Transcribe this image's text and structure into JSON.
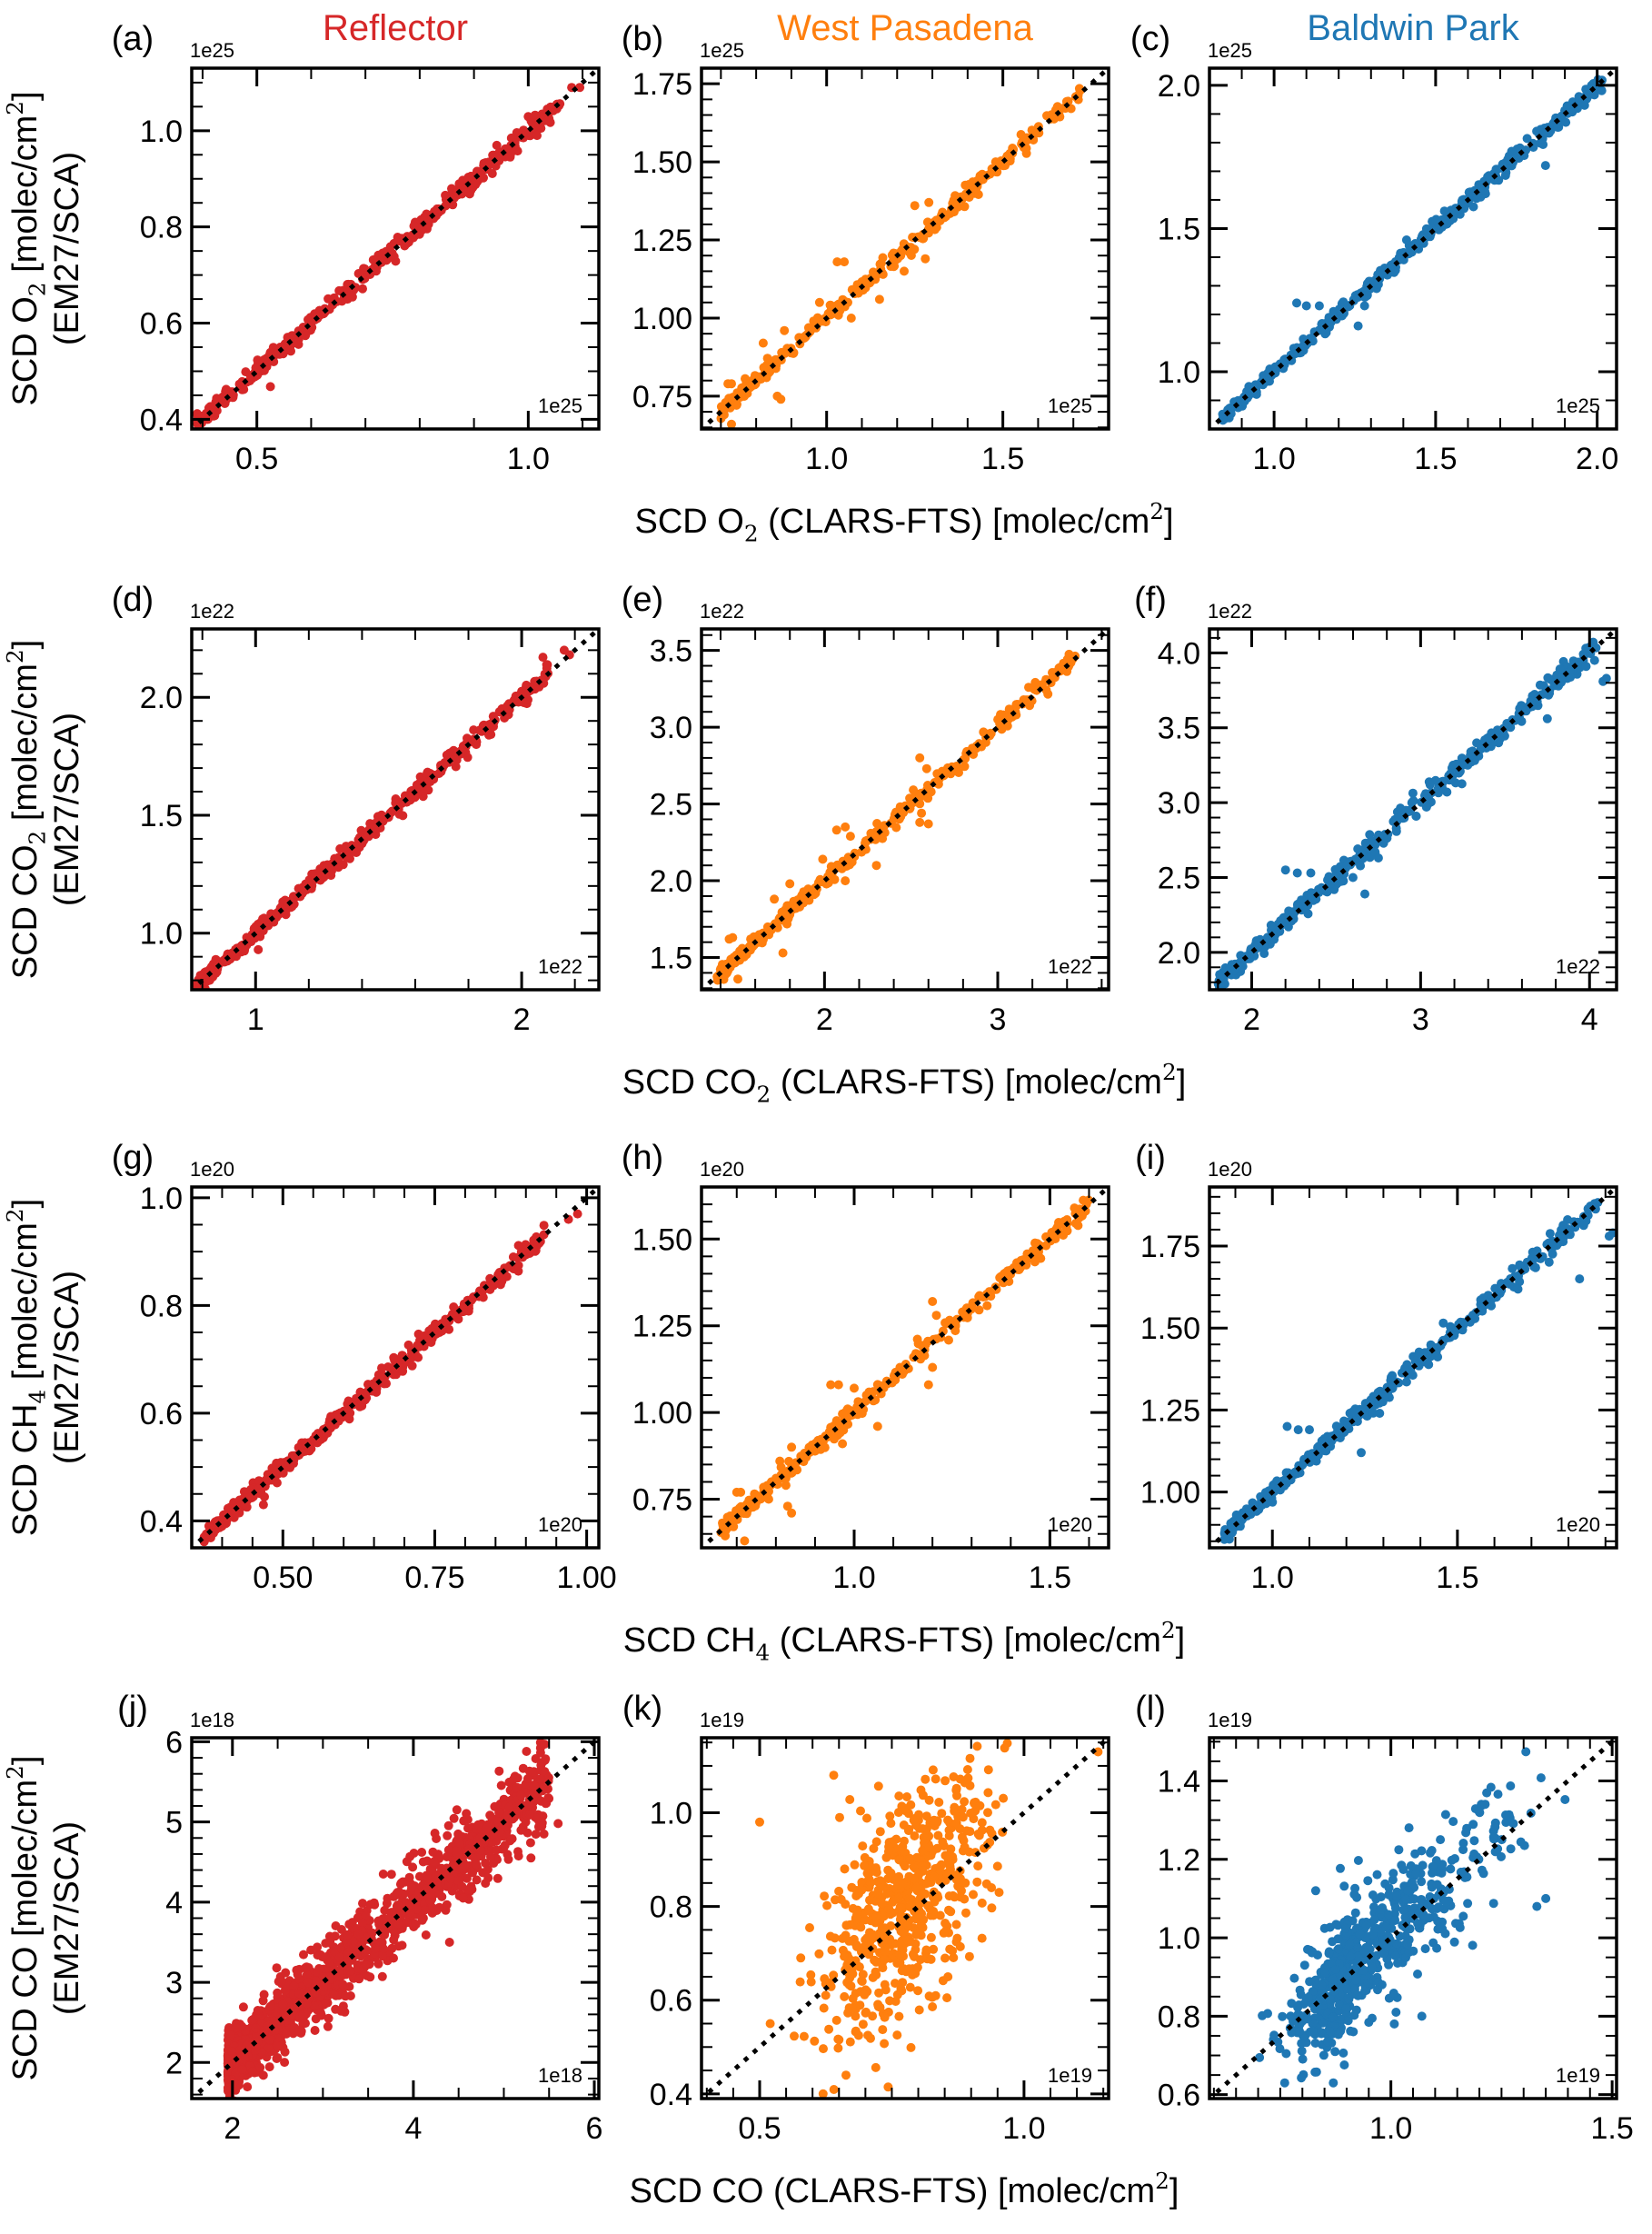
{
  "chart_data": {
    "type": "scatter",
    "title": "",
    "column_titles": [
      {
        "label": "Reflector",
        "color": "#d62728"
      },
      {
        "label": "West Pasadena",
        "color": "#ff7f0e"
      },
      {
        "label": "Baldwin Park",
        "color": "#1f77b4"
      }
    ],
    "ylabel_line2": "(EM27/SCA)",
    "row_xlabels": [
      {
        "prefix": "SCD O",
        "sub": "2",
        "suffix": " (CLARS-FTS) [molec/cm",
        "sup": "2",
        "end": "]"
      },
      {
        "prefix": "SCD CO",
        "sub": "2",
        "suffix": " (CLARS-FTS) [molec/cm",
        "sup": "2",
        "end": "]"
      },
      {
        "prefix": "SCD CH",
        "sub": "4",
        "suffix": " (CLARS-FTS) [molec/cm",
        "sup": "2",
        "end": "]"
      },
      {
        "prefix": "SCD CO",
        "sub": "",
        "suffix": " (CLARS-FTS) [molec/cm",
        "sup": "2",
        "end": "]"
      }
    ],
    "row_ylabels": [
      {
        "prefix": "SCD O",
        "sub": "2",
        "suffix": " [molec/cm",
        "sup": "2",
        "end": "]"
      },
      {
        "prefix": "SCD CO",
        "sub": "2",
        "suffix": " [molec/cm",
        "sup": "2",
        "end": "]"
      },
      {
        "prefix": "SCD CH",
        "sub": "4",
        "suffix": " [molec/cm",
        "sup": "2",
        "end": "]"
      },
      {
        "prefix": "SCD CO",
        "sub": "",
        "suffix": " [molec/cm",
        "sup": "2",
        "end": "]"
      }
    ],
    "reference_line": {
      "type": "1:1",
      "style": "dotted",
      "color": "#000000"
    },
    "panels": [
      {
        "id": "a",
        "label": "(a)",
        "site": "Reflector",
        "gas": "O2",
        "scale": "1e25",
        "xlim": [
          0.38,
          1.13
        ],
        "ylim": [
          0.38,
          1.13
        ],
        "xticks": [
          0.5,
          1.0
        ],
        "xticklabels": [
          "0.5",
          "1.0"
        ],
        "xminor": 0.1,
        "yticks": [
          0.4,
          0.6,
          0.8,
          1.0
        ],
        "yticklabels": [
          "0.4",
          "0.6",
          "0.8",
          "1.0"
        ],
        "yminor": 0.05,
        "spread": 0.008,
        "n": 420,
        "x_range": [
          0.39,
          1.06
        ],
        "outliers": [
          [
            0.525,
            0.468
          ],
          [
            1.035,
            1.045
          ],
          [
            1.08,
            1.09
          ],
          [
            1.095,
            1.09
          ]
        ]
      },
      {
        "id": "b",
        "label": "(b)",
        "site": "West Pasadena",
        "gas": "O2",
        "scale": "1e25",
        "xlim": [
          0.645,
          1.8
        ],
        "ylim": [
          0.645,
          1.8
        ],
        "xticks": [
          1.0,
          1.5
        ],
        "xticklabels": [
          "1.0",
          "1.5"
        ],
        "xminor": 0.1,
        "yticks": [
          0.75,
          1.0,
          1.25,
          1.5,
          1.75
        ],
        "yticklabels": [
          "0.75",
          "1.00",
          "1.25",
          "1.50",
          "1.75"
        ],
        "yminor": 0.05,
        "spread": 0.012,
        "n": 320,
        "x_range": [
          0.7,
          1.72
        ],
        "outliers": [
          [
            0.72,
            0.79
          ],
          [
            0.73,
            0.79
          ],
          [
            0.73,
            0.66
          ],
          [
            0.82,
            0.92
          ],
          [
            0.86,
            0.75
          ],
          [
            0.87,
            0.74
          ],
          [
            0.88,
            0.96
          ],
          [
            1.03,
            1.18
          ],
          [
            1.05,
            1.18
          ],
          [
            1.06,
            1.05
          ],
          [
            1.07,
            1.0
          ],
          [
            1.15,
            1.06
          ],
          [
            0.98,
            1.05
          ],
          [
            1.16,
            1.14
          ],
          [
            1.22,
            1.15
          ],
          [
            1.25,
            1.36
          ],
          [
            1.29,
            1.37
          ],
          [
            1.28,
            1.19
          ],
          [
            1.21,
            1.2
          ]
        ]
      },
      {
        "id": "c",
        "label": "(c)",
        "site": "Baldwin Park",
        "gas": "O2",
        "scale": "1e25",
        "xlim": [
          0.8,
          2.06
        ],
        "ylim": [
          0.8,
          2.06
        ],
        "xticks": [
          1.0,
          1.5,
          2.0
        ],
        "xticklabels": [
          "1.0",
          "1.5",
          "2.0"
        ],
        "xminor": 0.1,
        "yticks": [
          1.0,
          1.5,
          2.0
        ],
        "yticklabels": [
          "1.0",
          "1.5",
          "2.0"
        ],
        "yminor": 0.1,
        "spread": 0.012,
        "n": 420,
        "x_range": [
          0.84,
          2.02
        ],
        "outliers": [
          [
            1.07,
            1.24
          ],
          [
            1.1,
            1.23
          ],
          [
            1.14,
            1.23
          ],
          [
            1.26,
            1.16
          ],
          [
            1.28,
            1.23
          ],
          [
            1.41,
            1.46
          ],
          [
            1.84,
            1.72
          ]
        ]
      },
      {
        "id": "d",
        "label": "(d)",
        "site": "Reflector",
        "gas": "CO2",
        "scale": "1e22",
        "xlim": [
          0.76,
          2.29
        ],
        "ylim": [
          0.76,
          2.29
        ],
        "xticks": [
          1,
          2
        ],
        "xticklabels": [
          "1",
          "2"
        ],
        "xminor": 0.2,
        "yticks": [
          1.0,
          1.5,
          2.0
        ],
        "yticklabels": [
          "1.0",
          "1.5",
          "2.0"
        ],
        "yminor": 0.1,
        "spread": 0.016,
        "n": 420,
        "x_range": [
          0.78,
          2.1
        ],
        "outliers": [
          [
            1.01,
            0.93
          ],
          [
            2.08,
            2.17
          ],
          [
            2.16,
            2.2
          ],
          [
            2.18,
            2.18
          ]
        ]
      },
      {
        "id": "e",
        "label": "(e)",
        "site": "West Pasadena",
        "gas": "CO2",
        "scale": "1e22",
        "xlim": [
          1.29,
          3.64
        ],
        "ylim": [
          1.29,
          3.64
        ],
        "xticks": [
          2,
          3
        ],
        "xticklabels": [
          "2",
          "3"
        ],
        "xminor": 0.2,
        "yticks": [
          1.5,
          2.0,
          2.5,
          3.0,
          3.5
        ],
        "yticklabels": [
          "1.5",
          "2.0",
          "2.5",
          "3.0",
          "3.5"
        ],
        "yminor": 0.1,
        "spread": 0.025,
        "n": 320,
        "x_range": [
          1.38,
          3.45
        ],
        "outliers": [
          [
            1.45,
            1.62
          ],
          [
            1.47,
            1.63
          ],
          [
            1.5,
            1.36
          ],
          [
            1.71,
            1.88
          ],
          [
            1.76,
            1.53
          ],
          [
            1.8,
            1.98
          ],
          [
            1.99,
            2.14
          ],
          [
            2.07,
            2.33
          ],
          [
            2.12,
            2.35
          ],
          [
            2.15,
            2.29
          ],
          [
            2.12,
            2.0
          ],
          [
            2.3,
            2.1
          ],
          [
            2.55,
            2.8
          ],
          [
            2.59,
            2.73
          ],
          [
            2.55,
            2.38
          ],
          [
            2.6,
            2.37
          ],
          [
            2.56,
            2.44
          ]
        ]
      },
      {
        "id": "f",
        "label": "(f)",
        "site": "Baldwin Park",
        "gas": "CO2",
        "scale": "1e22",
        "xlim": [
          1.75,
          4.16
        ],
        "ylim": [
          1.75,
          4.16
        ],
        "xticks": [
          2,
          3,
          4
        ],
        "xticklabels": [
          "2",
          "3",
          "4"
        ],
        "xminor": 0.2,
        "yticks": [
          2.0,
          2.5,
          3.0,
          3.5,
          4.0
        ],
        "yticklabels": [
          "2.0",
          "2.5",
          "3.0",
          "3.5",
          "4.0"
        ],
        "yminor": 0.1,
        "spread": 0.03,
        "n": 420,
        "x_range": [
          1.8,
          4.05
        ],
        "outliers": [
          [
            2.2,
            2.55
          ],
          [
            2.27,
            2.53
          ],
          [
            2.35,
            2.53
          ],
          [
            2.67,
            2.39
          ],
          [
            2.75,
            2.63
          ],
          [
            3.75,
            3.56
          ],
          [
            4.08,
            3.81
          ],
          [
            4.1,
            3.83
          ],
          [
            3.98,
            3.91
          ],
          [
            4.03,
            3.95
          ]
        ]
      },
      {
        "id": "g",
        "label": "(g)",
        "site": "Reflector",
        "gas": "CH4",
        "scale": "1e20",
        "xlim": [
          0.35,
          1.02
        ],
        "ylim": [
          0.35,
          1.02
        ],
        "xticks": [
          0.5,
          0.75,
          1.0
        ],
        "xticklabels": [
          "0.50",
          "0.75",
          "1.00"
        ],
        "xminor": 0.05,
        "yticks": [
          0.4,
          0.6,
          0.8,
          1.0
        ],
        "yticklabels": [
          "0.4",
          "0.6",
          "0.8",
          "1.0"
        ],
        "yminor": 0.05,
        "spread": 0.007,
        "n": 420,
        "x_range": [
          0.37,
          0.93
        ],
        "outliers": [
          [
            0.468,
            0.43
          ],
          [
            0.97,
            0.96
          ],
          [
            0.985,
            0.97
          ]
        ]
      },
      {
        "id": "h",
        "label": "(h)",
        "site": "West Pasadena",
        "gas": "CH4",
        "scale": "1e20",
        "xlim": [
          0.61,
          1.65
        ],
        "ylim": [
          0.61,
          1.65
        ],
        "xticks": [
          1.0,
          1.5
        ],
        "xticklabels": [
          "1.0",
          "1.5"
        ],
        "xminor": 0.1,
        "yticks": [
          0.75,
          1.0,
          1.25,
          1.5
        ],
        "yticklabels": [
          "0.75",
          "1.00",
          "1.25",
          "1.50"
        ],
        "yminor": 0.05,
        "spread": 0.012,
        "n": 320,
        "x_range": [
          0.66,
          1.6
        ],
        "outliers": [
          [
            0.7,
            0.77
          ],
          [
            0.71,
            0.77
          ],
          [
            0.72,
            0.63
          ],
          [
            0.81,
            0.86
          ],
          [
            0.83,
            0.73
          ],
          [
            0.84,
            0.71
          ],
          [
            0.84,
            0.9
          ],
          [
            0.94,
            1.08
          ],
          [
            0.96,
            1.08
          ],
          [
            0.97,
            0.91
          ],
          [
            1.0,
            1.07
          ],
          [
            1.06,
            0.96
          ],
          [
            1.2,
            1.32
          ],
          [
            1.21,
            1.28
          ],
          [
            1.2,
            1.13
          ],
          [
            1.19,
            1.08
          ]
        ]
      },
      {
        "id": "i",
        "label": "(i)",
        "site": "Baldwin Park",
        "gas": "CH4",
        "scale": "1e20",
        "xlim": [
          0.83,
          1.93
        ],
        "ylim": [
          0.83,
          1.93
        ],
        "xticks": [
          1.0,
          1.5
        ],
        "xticklabels": [
          "1.0",
          "1.5"
        ],
        "xminor": 0.1,
        "yticks": [
          1.0,
          1.25,
          1.5,
          1.75
        ],
        "yticklabels": [
          "1.00",
          "1.25",
          "1.50",
          "1.75"
        ],
        "yminor": 0.05,
        "spread": 0.012,
        "n": 420,
        "x_range": [
          0.87,
          1.88
        ],
        "outliers": [
          [
            1.04,
            1.2
          ],
          [
            1.07,
            1.19
          ],
          [
            1.1,
            1.19
          ],
          [
            1.24,
            1.12
          ],
          [
            1.29,
            1.24
          ],
          [
            1.83,
            1.65
          ],
          [
            1.91,
            1.78
          ],
          [
            1.92,
            1.79
          ]
        ]
      },
      {
        "id": "j",
        "label": "(j)",
        "site": "Reflector",
        "gas": "CO",
        "scale": "1e18",
        "xlim": [
          1.55,
          6.05
        ],
        "ylim": [
          1.55,
          6.05
        ],
        "xticks": [
          2,
          4,
          6
        ],
        "xticklabels": [
          "2",
          "4",
          "6"
        ],
        "xminor": 0.5,
        "yticks": [
          2,
          3,
          4,
          5,
          6
        ],
        "yticklabels": [
          "2",
          "3",
          "4",
          "5",
          "6"
        ],
        "yminor": 0.2,
        "spread": 0.2,
        "n": 1400,
        "x_range": [
          1.95,
          5.5
        ],
        "outliers": [
          [
            5.6,
            4.98
          ],
          [
            5.3,
            4.55
          ],
          [
            4.55,
            4.05
          ],
          [
            4.4,
            3.5
          ],
          [
            5.45,
            5.97
          ],
          [
            5.25,
            5.88
          ]
        ]
      },
      {
        "id": "k",
        "label": "(k)",
        "site": "West Pasadena",
        "gas": "CO",
        "scale": "1e19",
        "xlim": [
          0.39,
          1.16
        ],
        "ylim": [
          0.39,
          1.16
        ],
        "xticks": [
          0.5,
          1.0
        ],
        "xticklabels": [
          "0.5",
          "1.0"
        ],
        "xminor": 0.05,
        "yticks": [
          0.4,
          0.6,
          0.8,
          1.0
        ],
        "yticklabels": [
          "0.4",
          "0.6",
          "0.8",
          "1.0"
        ],
        "yminor": 0.05,
        "spread": 0.09,
        "n": 620,
        "x_range": [
          0.5,
          1.13
        ],
        "outliers": [
          [
            0.5,
            0.98
          ],
          [
            0.52,
            0.55
          ],
          [
            0.62,
            0.4
          ],
          [
            0.64,
            1.08
          ],
          [
            1.14,
            1.13
          ]
        ]
      },
      {
        "id": "l",
        "label": "(l)",
        "site": "Baldwin Park",
        "gas": "CO",
        "scale": "1e19",
        "xlim": [
          0.59,
          1.51
        ],
        "ylim": [
          0.59,
          1.51
        ],
        "xticks": [
          1.0,
          1.5
        ],
        "xticklabels": [
          "1.0",
          "1.5"
        ],
        "xminor": 0.05,
        "yticks": [
          0.6,
          0.8,
          1.0,
          1.2,
          1.4
        ],
        "yticklabels": [
          "0.6",
          "0.8",
          "1.0",
          "1.2",
          "1.4"
        ],
        "yminor": 0.05,
        "spread": 0.08,
        "n": 620,
        "x_range": [
          0.7,
          1.37
        ],
        "outliers": [
          [
            0.83,
            1.12
          ],
          [
            0.87,
            0.63
          ],
          [
            0.76,
            0.63
          ],
          [
            1.35,
            1.1
          ],
          [
            1.33,
            1.08
          ],
          [
            1.07,
            0.8
          ],
          [
            0.86,
            0.96
          ]
        ]
      }
    ]
  }
}
